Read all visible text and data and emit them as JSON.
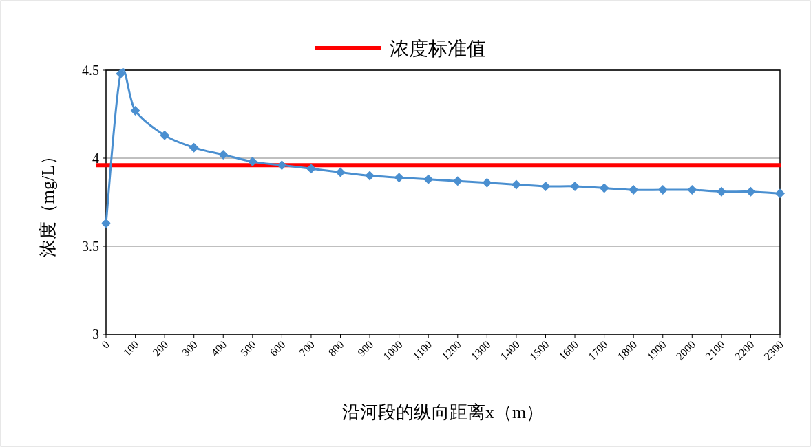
{
  "chart_data": {
    "type": "line",
    "xlabel": "沿河段的纵向距离x（m）",
    "ylabel": "浓度（mg/L）",
    "x": [
      0,
      50,
      100,
      200,
      300,
      400,
      500,
      600,
      700,
      800,
      900,
      1000,
      1100,
      1200,
      1300,
      1400,
      1500,
      1600,
      1700,
      1800,
      1900,
      2000,
      2100,
      2200,
      2300
    ],
    "series": [
      {
        "color": "#4a8fd0",
        "values": [
          3.63,
          4.48,
          4.27,
          4.13,
          4.06,
          4.02,
          3.98,
          3.96,
          3.94,
          3.92,
          3.9,
          3.89,
          3.88,
          3.87,
          3.86,
          3.85,
          3.84,
          3.84,
          3.83,
          3.82,
          3.82,
          3.82,
          3.81,
          3.81,
          3.8
        ]
      }
    ],
    "xlim": [
      0,
      2300
    ],
    "xticks": [
      0,
      100,
      200,
      300,
      400,
      500,
      600,
      700,
      800,
      900,
      1000,
      1100,
      1200,
      1300,
      1400,
      1500,
      1600,
      1700,
      1800,
      1900,
      2000,
      2100,
      2200,
      2300
    ],
    "ylim": [
      3,
      4.5
    ],
    "yticks": [
      3,
      3.5,
      4,
      4.5
    ],
    "grid": "y",
    "marker": "diamond",
    "line_style": "solid",
    "ref_lines": [
      {
        "axis": "y",
        "value": 3.96,
        "label": "浓度标准值",
        "color": "#ff0000"
      }
    ],
    "legend": "top"
  }
}
